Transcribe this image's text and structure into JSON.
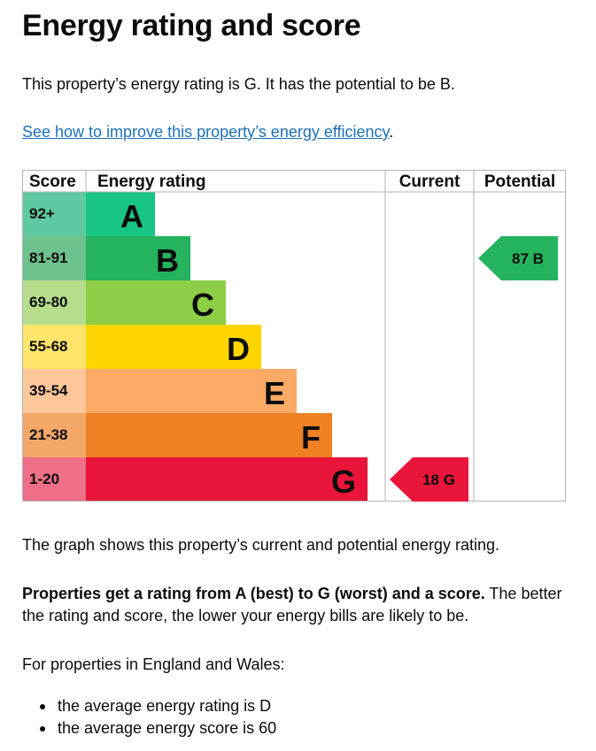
{
  "page": {
    "title": "Energy rating and score",
    "intro": "This property’s energy rating is G. It has the potential to be B.",
    "improve_link": "See how to improve this property’s energy efficiency",
    "link_suffix": ".",
    "graph_description": "The graph shows this property’s current and potential energy rating.",
    "rating_note_bold": "Properties get a rating from A (best) to G (worst) and a score.",
    "rating_note_rest": " The better the rating and score, the lower your energy bills are likely to be.",
    "region_line": "For properties in England and Wales:",
    "averages": [
      "the average energy rating is D",
      "the average energy score is 60"
    ]
  },
  "chart_data": {
    "type": "table",
    "headers": {
      "score": "Score",
      "rating": "Energy rating",
      "current": "Current",
      "potential": "Potential"
    },
    "bands": [
      {
        "score": "92+",
        "letter": "A",
        "color": "#19c585",
        "score_bg": "#5ec9a0"
      },
      {
        "score": "81-91",
        "letter": "B",
        "color": "#25b35e",
        "score_bg": "#6dc28d"
      },
      {
        "score": "69-80",
        "letter": "C",
        "color": "#8dce46",
        "score_bg": "#b5dd8c"
      },
      {
        "score": "55-68",
        "letter": "D",
        "color": "#ffd500",
        "score_bg": "#ffe56b"
      },
      {
        "score": "39-54",
        "letter": "E",
        "color": "#fcaa65",
        "score_bg": "#fdc79a"
      },
      {
        "score": "21-38",
        "letter": "F",
        "color": "#ef8023",
        "score_bg": "#f3a86a"
      },
      {
        "score": "1-20",
        "letter": "G",
        "color": "#e9153b",
        "score_bg": "#ef6e88"
      }
    ],
    "current": {
      "score": 18,
      "letter": "G",
      "label": "18  G",
      "color": "#e9153b"
    },
    "potential": {
      "score": 87,
      "letter": "B",
      "label": "87  B",
      "color": "#25b35e"
    }
  }
}
